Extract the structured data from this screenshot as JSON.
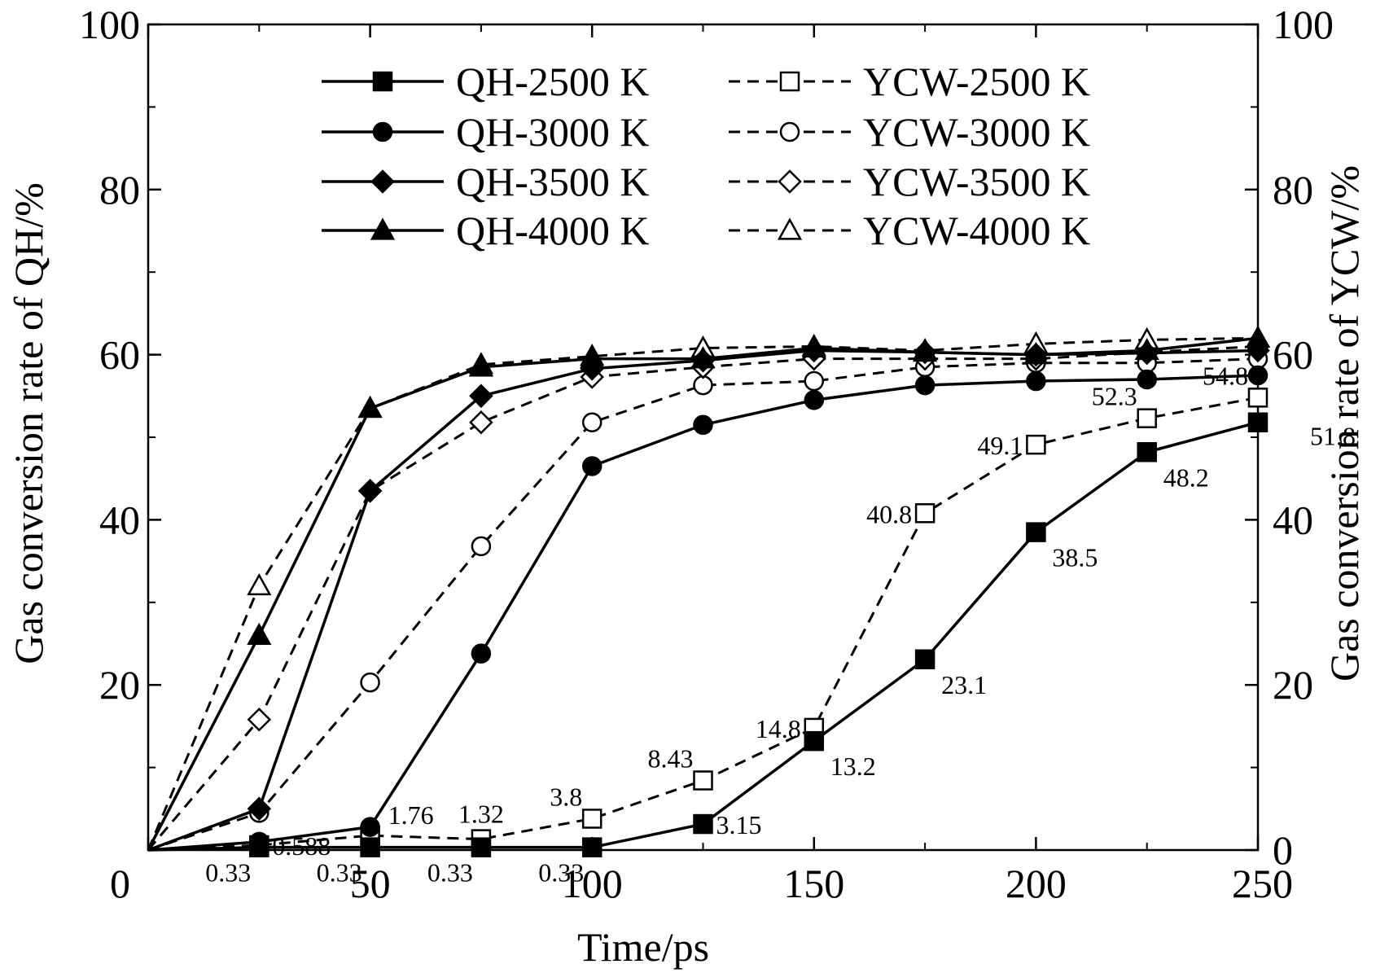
{
  "chart_data": {
    "type": "line",
    "xlabel": "Time/ps",
    "ylabel": "Gas conversion rate of QH/%",
    "y2label": "Gas conversion rate of YCW/%",
    "xlim": [
      0,
      250
    ],
    "ylim": [
      0,
      100
    ],
    "y2lim": [
      0,
      100
    ],
    "xticks": [
      0,
      50,
      100,
      150,
      200,
      250
    ],
    "yticks": [
      0,
      20,
      40,
      60,
      80,
      100
    ],
    "y2ticks": [
      0,
      20,
      40,
      60,
      80,
      100
    ],
    "grid": false,
    "legend_position": "top",
    "x": [
      0,
      25,
      50,
      75,
      100,
      125,
      150,
      175,
      200,
      225,
      250
    ],
    "series": [
      {
        "name": "QH-2500 K",
        "axis": "left",
        "style": "solid",
        "marker": "square",
        "filled": true,
        "values": [
          0,
          0.33,
          0.33,
          0.33,
          0.33,
          3.15,
          13.2,
          23.1,
          38.5,
          48.2,
          51.8
        ]
      },
      {
        "name": "QH-3000 K",
        "axis": "left",
        "style": "solid",
        "marker": "circle",
        "filled": true,
        "values": [
          0,
          1.0,
          2.8,
          23.8,
          46.5,
          51.5,
          54.5,
          56.3,
          56.8,
          57.0,
          57.5
        ]
      },
      {
        "name": "QH-3500 K",
        "axis": "left",
        "style": "solid",
        "marker": "diamond",
        "filled": true,
        "values": [
          0,
          5.0,
          43.5,
          55.0,
          58.3,
          59.3,
          60.5,
          60.3,
          60.0,
          60.2,
          60.5
        ]
      },
      {
        "name": "QH-4000 K",
        "axis": "left",
        "style": "solid",
        "marker": "triangle",
        "filled": true,
        "values": [
          0,
          26.0,
          53.5,
          58.5,
          59.5,
          59.5,
          60.8,
          60.3,
          60.0,
          60.5,
          62.0
        ]
      },
      {
        "name": "YCW-2500 K",
        "axis": "right",
        "style": "dashed",
        "marker": "square",
        "filled": false,
        "values": [
          0,
          0.588,
          1.76,
          1.32,
          3.8,
          8.43,
          14.8,
          40.8,
          49.1,
          52.3,
          54.8
        ]
      },
      {
        "name": "YCW-3000 K",
        "axis": "right",
        "style": "dashed",
        "marker": "circle",
        "filled": false,
        "values": [
          0,
          4.5,
          20.3,
          36.8,
          51.8,
          56.3,
          56.8,
          58.5,
          59.0,
          59.0,
          59.5
        ]
      },
      {
        "name": "YCW-3500 K",
        "axis": "right",
        "style": "dashed",
        "marker": "diamond",
        "filled": false,
        "values": [
          0,
          15.8,
          43.5,
          51.8,
          57.3,
          58.5,
          59.5,
          59.5,
          59.5,
          60.3,
          61.0
        ]
      },
      {
        "name": "YCW-4000 K",
        "axis": "right",
        "style": "dashed",
        "marker": "triangle",
        "filled": false,
        "values": [
          0,
          32.0,
          53.5,
          58.8,
          59.8,
          60.8,
          61.0,
          60.5,
          61.3,
          61.8,
          62.0
        ]
      }
    ],
    "annotations": [
      {
        "text": "0.33",
        "series": 0,
        "index": 1,
        "pos": "below"
      },
      {
        "text": "0.33",
        "series": 0,
        "index": 2,
        "pos": "below"
      },
      {
        "text": "0.33",
        "series": 0,
        "index": 3,
        "pos": "below"
      },
      {
        "text": "0.33",
        "series": 0,
        "index": 4,
        "pos": "below"
      },
      {
        "text": "3.15",
        "series": 0,
        "index": 5,
        "pos": "right"
      },
      {
        "text": "13.2",
        "series": 0,
        "index": 6,
        "pos": "below"
      },
      {
        "text": "23.1",
        "series": 0,
        "index": 7,
        "pos": "below"
      },
      {
        "text": "38.5",
        "series": 0,
        "index": 8,
        "pos": "below"
      },
      {
        "text": "48.2",
        "series": 0,
        "index": 9,
        "pos": "below"
      },
      {
        "text": "51.8",
        "series": 0,
        "index": 10,
        "pos": "left-below"
      },
      {
        "text": "0.588",
        "series": 4,
        "index": 1,
        "pos": "right"
      },
      {
        "text": "1.76",
        "series": 4,
        "index": 2,
        "pos": "above-right"
      },
      {
        "text": "1.32",
        "series": 4,
        "index": 3,
        "pos": "above"
      },
      {
        "text": "3.8",
        "series": 4,
        "index": 4,
        "pos": "above-left"
      },
      {
        "text": "8.43",
        "series": 4,
        "index": 5,
        "pos": "above-left"
      },
      {
        "text": "14.8",
        "series": 4,
        "index": 6,
        "pos": "left"
      },
      {
        "text": "40.8",
        "series": 4,
        "index": 7,
        "pos": "left"
      },
      {
        "text": "49.1",
        "series": 4,
        "index": 8,
        "pos": "left"
      },
      {
        "text": "52.3",
        "series": 4,
        "index": 9,
        "pos": "above-left"
      },
      {
        "text": "54.8",
        "series": 4,
        "index": 10,
        "pos": "above-left"
      }
    ]
  }
}
